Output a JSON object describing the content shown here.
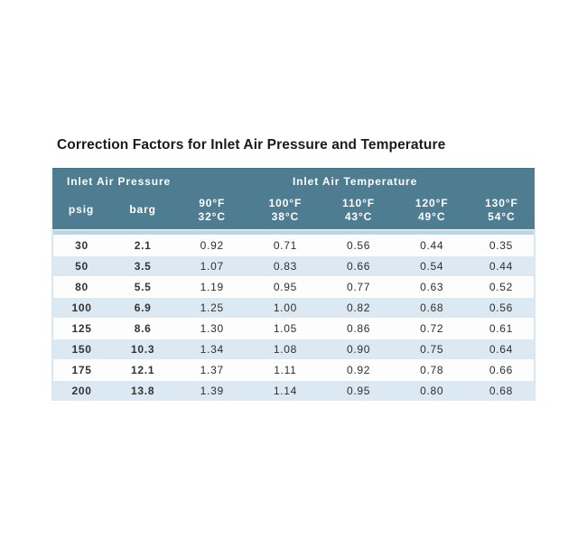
{
  "title": "Correction Factors for Inlet Air Pressure and Temperature",
  "colors": {
    "header_bg": "#4e7d92",
    "header_text": "#ffffff",
    "divider_strip": "#b5d8ec",
    "row_alt_bg": "#dce9f3",
    "row_bg": "#fdfdfe",
    "body_text": "#2e2e2e",
    "title_text": "#1b1b1d",
    "table_edge": "#d7e7f3"
  },
  "table": {
    "group_headers": {
      "pressure": "Inlet Air Pressure",
      "temperature": "Inlet Air Temperature"
    },
    "unit_headers": [
      "psig",
      "barg"
    ],
    "temp_headers": [
      {
        "f": "90°F",
        "c": "32°C"
      },
      {
        "f": "100°F",
        "c": "38°C"
      },
      {
        "f": "110°F",
        "c": "43°C"
      },
      {
        "f": "120°F",
        "c": "49°C"
      },
      {
        "f": "130°F",
        "c": "54°C"
      }
    ],
    "rows": [
      [
        "30",
        "2.1",
        "0.92",
        "0.71",
        "0.56",
        "0.44",
        "0.35"
      ],
      [
        "50",
        "3.5",
        "1.07",
        "0.83",
        "0.66",
        "0.54",
        "0.44"
      ],
      [
        "80",
        "5.5",
        "1.19",
        "0.95",
        "0.77",
        "0.63",
        "0.52"
      ],
      [
        "100",
        "6.9",
        "1.25",
        "1.00",
        "0.82",
        "0.68",
        "0.56"
      ],
      [
        "125",
        "8.6",
        "1.30",
        "1.05",
        "0.86",
        "0.72",
        "0.61"
      ],
      [
        "150",
        "10.3",
        "1.34",
        "1.08",
        "0.90",
        "0.75",
        "0.64"
      ],
      [
        "175",
        "12.1",
        "1.37",
        "1.11",
        "0.92",
        "0.78",
        "0.66"
      ],
      [
        "200",
        "13.8",
        "1.39",
        "1.14",
        "0.95",
        "0.80",
        "0.68"
      ]
    ]
  },
  "chart_data": {
    "type": "table",
    "title": "Correction Factors for Inlet Air Pressure and Temperature",
    "columns": [
      "psig",
      "barg",
      "90°F / 32°C",
      "100°F / 38°C",
      "110°F / 43°C",
      "120°F / 49°C",
      "130°F / 54°C"
    ],
    "rows": [
      [
        30,
        2.1,
        0.92,
        0.71,
        0.56,
        0.44,
        0.35
      ],
      [
        50,
        3.5,
        1.07,
        0.83,
        0.66,
        0.54,
        0.44
      ],
      [
        80,
        5.5,
        1.19,
        0.95,
        0.77,
        0.63,
        0.52
      ],
      [
        100,
        6.9,
        1.25,
        1.0,
        0.82,
        0.68,
        0.56
      ],
      [
        125,
        8.6,
        1.3,
        1.05,
        0.86,
        0.72,
        0.61
      ],
      [
        150,
        10.3,
        1.34,
        1.08,
        0.9,
        0.75,
        0.64
      ],
      [
        175,
        12.1,
        1.37,
        1.11,
        0.92,
        0.78,
        0.66
      ],
      [
        200,
        13.8,
        1.39,
        1.14,
        0.95,
        0.8,
        0.68
      ]
    ]
  }
}
